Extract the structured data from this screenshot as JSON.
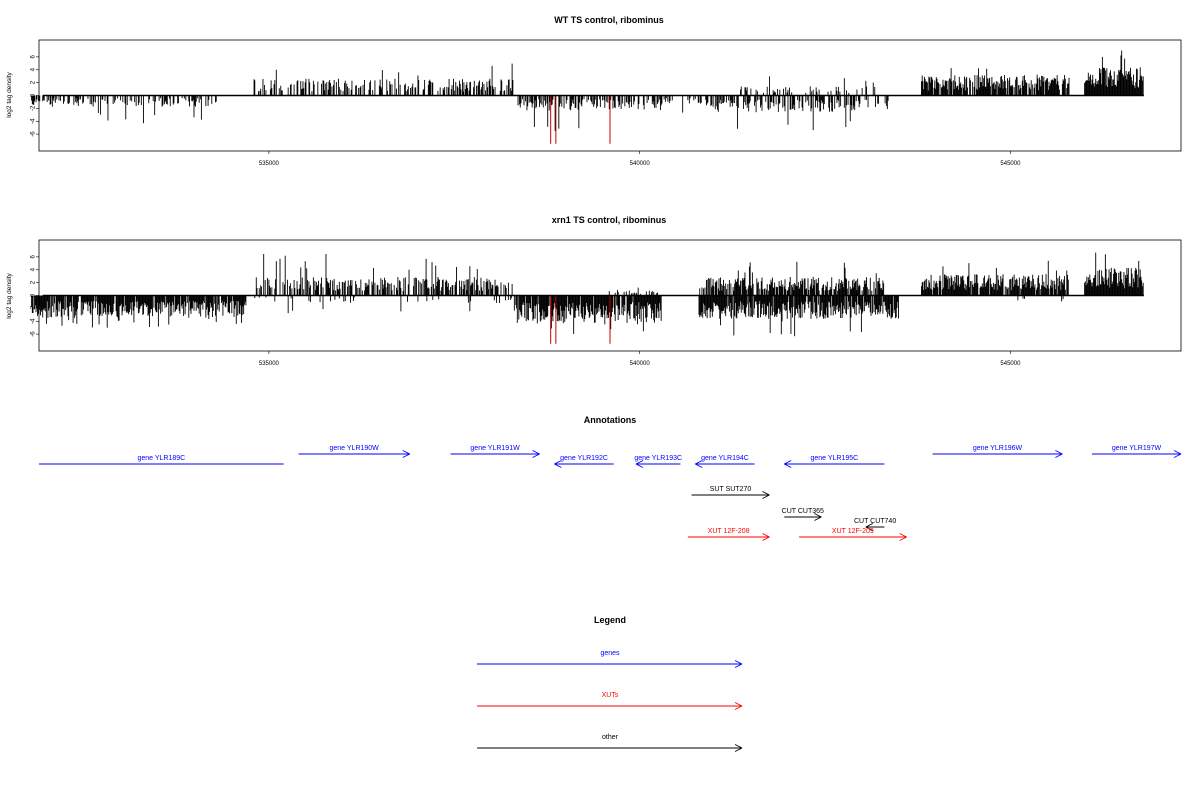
{
  "colors": {
    "genes": "#0000ff",
    "xuts": "#ff0000",
    "other": "#000000",
    "marker": "#cc0000"
  },
  "x_ticks": [
    535000,
    540000,
    545000
  ],
  "chart_data": [
    {
      "type": "bar",
      "title": "WT TS control, ribominus",
      "ylabel": "log2 tag density",
      "xlim": [
        531900,
        547300
      ],
      "ylim": [
        -8,
        8
      ],
      "y_ticks": [
        -6,
        -4,
        -2,
        0,
        2,
        4,
        6
      ],
      "seed": 11,
      "regions": [
        {
          "x0": 531800,
          "x1": 534300,
          "strand": "-",
          "mean": 1.2,
          "max": 4.5,
          "density": 0.45
        },
        {
          "x0": 534800,
          "x1": 538300,
          "strand": "+",
          "mean": 1.8,
          "max": 5.0,
          "density": 0.5
        },
        {
          "x0": 538300,
          "x1": 540300,
          "strand": "-",
          "mean": 1.6,
          "max": 5.5,
          "density": 0.55
        },
        {
          "x0": 540300,
          "x1": 541000,
          "strand": "-",
          "mean": 1.0,
          "max": 3.0,
          "density": 0.3
        },
        {
          "x0": 540900,
          "x1": 543400,
          "strand": "-",
          "mean": 1.8,
          "max": 5.5,
          "density": 0.55
        },
        {
          "x0": 541300,
          "x1": 543200,
          "strand": "+",
          "mean": 1.0,
          "max": 3.0,
          "density": 0.25
        },
        {
          "x0": 543800,
          "x1": 545800,
          "strand": "+",
          "mean": 2.2,
          "max": 4.5,
          "density": 0.85
        },
        {
          "x0": 546000,
          "x1": 546800,
          "strand": "+",
          "mean": 3.0,
          "max": 7.0,
          "density": 1.0
        }
      ],
      "markers": [
        -7.5,
        -7.5,
        -7.5
      ],
      "marker_x": [
        538800,
        538870,
        539600
      ]
    },
    {
      "type": "bar",
      "title": "xrn1 TS control, ribominus",
      "ylabel": "log2 tag density",
      "xlim": [
        531900,
        547300
      ],
      "ylim": [
        -8,
        8
      ],
      "y_ticks": [
        -6,
        -4,
        -2,
        0,
        2,
        4,
        6
      ],
      "seed": 23,
      "regions": [
        {
          "x0": 531800,
          "x1": 534700,
          "strand": "-",
          "mean": 2.4,
          "max": 5.0,
          "density": 0.9
        },
        {
          "x0": 534800,
          "x1": 538300,
          "strand": "+",
          "mean": 2.0,
          "max": 6.5,
          "density": 0.6
        },
        {
          "x0": 534800,
          "x1": 538300,
          "strand": "-",
          "mean": 0.8,
          "max": 3.0,
          "density": 0.1
        },
        {
          "x0": 538300,
          "x1": 540300,
          "strand": "-",
          "mean": 3.0,
          "max": 6.0,
          "density": 0.9
        },
        {
          "x0": 539500,
          "x1": 540300,
          "strand": "+",
          "mean": 0.6,
          "max": 1.5,
          "density": 0.2
        },
        {
          "x0": 540800,
          "x1": 543500,
          "strand": "-",
          "mean": 2.5,
          "max": 6.5,
          "density": 0.9
        },
        {
          "x0": 540800,
          "x1": 543300,
          "strand": "+",
          "mean": 2.0,
          "max": 5.5,
          "density": 0.75
        },
        {
          "x0": 543800,
          "x1": 545800,
          "strand": "+",
          "mean": 2.3,
          "max": 5.5,
          "density": 0.9
        },
        {
          "x0": 545000,
          "x1": 545800,
          "strand": "-",
          "mean": 1.0,
          "max": 3.0,
          "density": 0.1
        },
        {
          "x0": 546000,
          "x1": 546800,
          "strand": "+",
          "mean": 3.0,
          "max": 7.0,
          "density": 1.0
        }
      ],
      "markers": [
        -7.5,
        -7.5,
        -7.5
      ],
      "marker_x": [
        538800,
        538870,
        539600
      ]
    }
  ],
  "annotations": {
    "title": "Annotations",
    "items": [
      {
        "label": "gene YLR189C",
        "type": "gene",
        "strand": "-",
        "x0": 531900,
        "x1": 535200,
        "row": 1
      },
      {
        "label": "gene YLR190W",
        "type": "gene",
        "strand": "+",
        "x0": 535400,
        "x1": 536900,
        "row": 0
      },
      {
        "label": "gene YLR191W",
        "type": "gene",
        "strand": "+",
        "x0": 537450,
        "x1": 538650,
        "row": 0
      },
      {
        "label": "gene YLR192C",
        "type": "gene",
        "strand": "-",
        "x0": 538850,
        "x1": 539650,
        "row": 1
      },
      {
        "label": "gene YLR193C",
        "type": "gene",
        "strand": "-",
        "x0": 539950,
        "x1": 540550,
        "row": 1
      },
      {
        "label": "gene YLR194C",
        "type": "gene",
        "strand": "-",
        "x0": 540750,
        "x1": 541550,
        "row": 1
      },
      {
        "label": "gene YLR195C",
        "type": "gene",
        "strand": "-",
        "x0": 541950,
        "x1": 543300,
        "row": 1
      },
      {
        "label": "gene YLR196W",
        "type": "gene",
        "strand": "+",
        "x0": 543950,
        "x1": 545700,
        "row": 0
      },
      {
        "label": "gene YLR197W",
        "type": "gene",
        "strand": "+",
        "x0": 546100,
        "x1": 547300,
        "row": 0
      },
      {
        "label": "SUT SUT270",
        "type": "other",
        "strand": "+",
        "x0": 540700,
        "x1": 541750,
        "row": 2
      },
      {
        "label": "CUT CUT365",
        "type": "other",
        "strand": "+",
        "x0": 541950,
        "x1": 542450,
        "row": 3
      },
      {
        "label": "CUT CUT740",
        "type": "other",
        "strand": "-",
        "x0": 543050,
        "x1": 543300,
        "row": 4
      },
      {
        "label": "XUT 12F-208",
        "type": "xut",
        "strand": "+",
        "x0": 540650,
        "x1": 541750,
        "row": 5
      },
      {
        "label": "XUT 12F-209",
        "type": "xut",
        "strand": "+",
        "x0": 542150,
        "x1": 543600,
        "row": 5
      }
    ]
  },
  "legend": {
    "title": "Legend",
    "items": [
      {
        "label": "genes",
        "type": "gene"
      },
      {
        "label": "XUTs",
        "type": "xut"
      },
      {
        "label": "other",
        "type": "other"
      }
    ]
  }
}
